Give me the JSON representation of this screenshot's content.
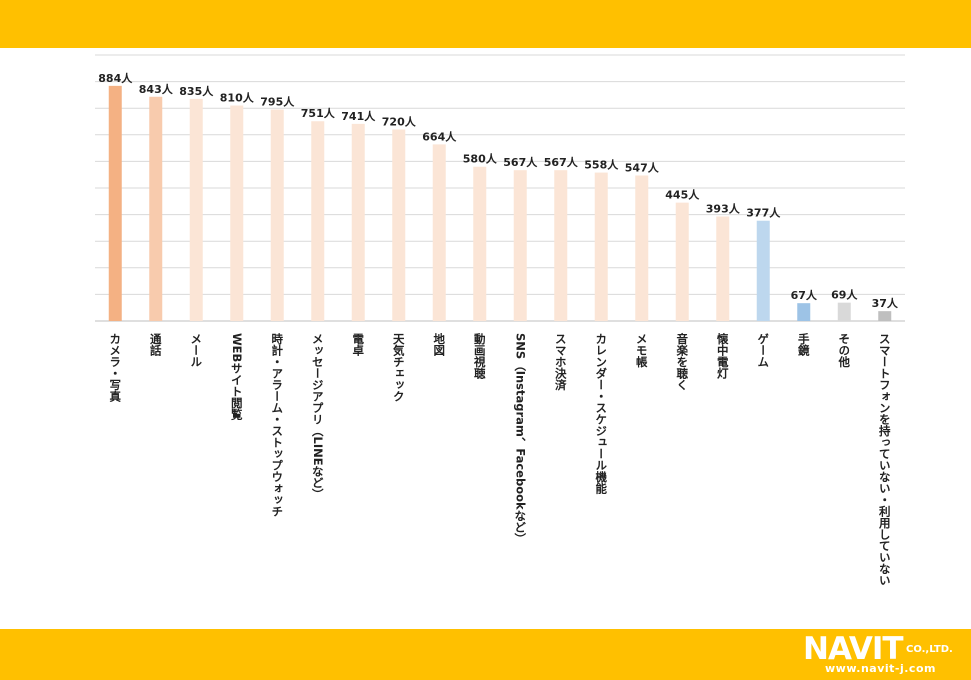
{
  "chart_data": {
    "type": "bar",
    "categories": [
      "カメラ・写真",
      "通話",
      "メール",
      "WEBサイト閲覧",
      "時計・アラーム・ストップウォッチ",
      "メッセージアプリ（LINEなど）",
      "電卓",
      "天気チェック",
      "地図",
      "動画視聴",
      "SNS（Instagram、Facebookなど）",
      "スマホ決済",
      "カレンダー・スケジュール機能",
      "メモ帳",
      "音楽を聴く",
      "懐中電灯",
      "ゲーム",
      "手鏡",
      "その他",
      "スマートフォンを持っていない・利用していない"
    ],
    "values": [
      884,
      843,
      835,
      810,
      795,
      751,
      741,
      720,
      664,
      580,
      567,
      567,
      558,
      547,
      445,
      393,
      377,
      67,
      69,
      37
    ],
    "value_labels": [
      "884人",
      "843人",
      "835人",
      "810人",
      "795人",
      "751人",
      "741人",
      "720人",
      "664人",
      "580人",
      "567人",
      "567人",
      "558人",
      "547人",
      "445人",
      "393人",
      "377人",
      "67人",
      "69人",
      "37人"
    ],
    "bar_colors": [
      "#F4B183",
      "#F8CBAD",
      "#FBE5D6",
      "#FBE5D6",
      "#FBE5D6",
      "#FBE5D6",
      "#FBE5D6",
      "#FBE5D6",
      "#FBE5D6",
      "#FBE5D6",
      "#FBE5D6",
      "#FBE5D6",
      "#FBE5D6",
      "#FBE5D6",
      "#FBE5D6",
      "#FBE5D6",
      "#BDD7EE",
      "#9DC3E6",
      "#D9D9D9",
      "#BFBFBF"
    ],
    "ylim": [
      0,
      1000
    ],
    "grid": true,
    "title": "",
    "xlabel": "",
    "ylabel": ""
  },
  "logo": {
    "brand": "NAVIT",
    "suffix": "CO.,LTD.",
    "url": "www.navit-j.com"
  }
}
